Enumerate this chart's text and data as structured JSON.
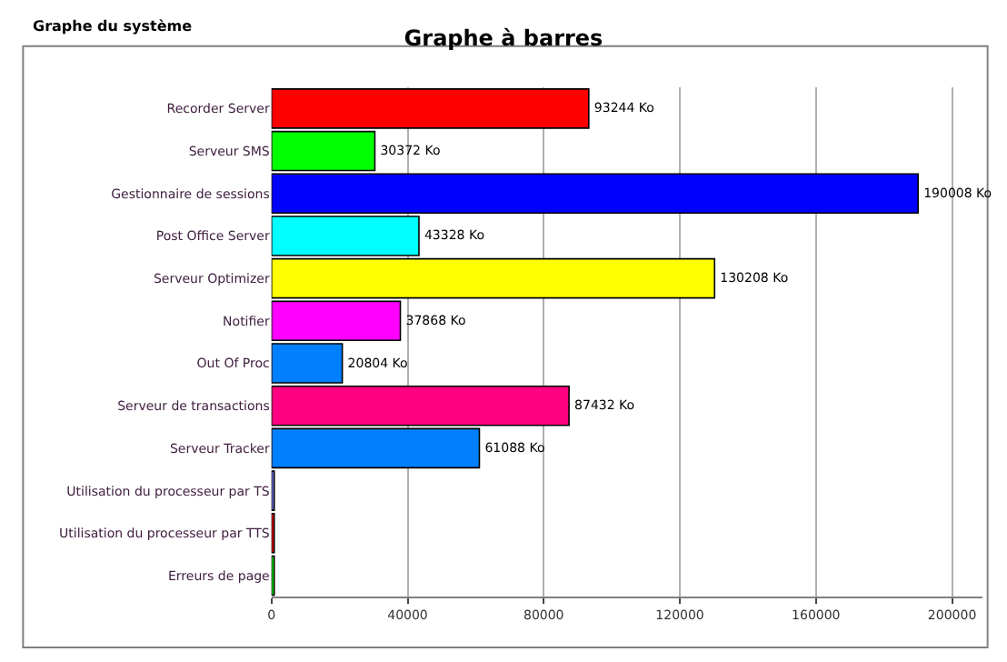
{
  "chart_data": {
    "type": "bar",
    "orientation": "horizontal",
    "title": "Graphe à barres",
    "annotations": [
      "Graphe du système"
    ],
    "categories": [
      "Recorder Server",
      "Serveur SMS",
      "Gestionnaire de sessions",
      "Post Office Server",
      "Serveur Optimizer",
      "Notifier",
      "Out Of Proc",
      "Serveur de transactions",
      "Serveur Tracker",
      "Utilisation du processeur par TS",
      "Utilisation du processeur par TTS",
      "Erreurs de page"
    ],
    "values": [
      93244,
      30372,
      190008,
      43328,
      130208,
      37868,
      20804,
      87432,
      61088,
      800,
      800,
      800
    ],
    "colors": [
      "#ff0000",
      "#00ff00",
      "#0000ff",
      "#00ffff",
      "#ffff00",
      "#ff00ff",
      "#0080ff",
      "#ff0080",
      "#0080ff",
      "#8080ff",
      "#ff0000",
      "#00ff00"
    ],
    "value_labels": [
      "93244 Ko",
      "30372 Ko",
      "190008 Ko",
      "43328 Ko",
      "130208 Ko",
      "37868 Ko",
      "20804 Ko",
      "87432 Ko",
      "61088 Ko",
      null,
      null,
      null
    ],
    "xlim": [
      0,
      209000
    ],
    "xticks": [
      0,
      40000,
      80000,
      120000,
      160000,
      200000
    ],
    "grid": "x"
  }
}
